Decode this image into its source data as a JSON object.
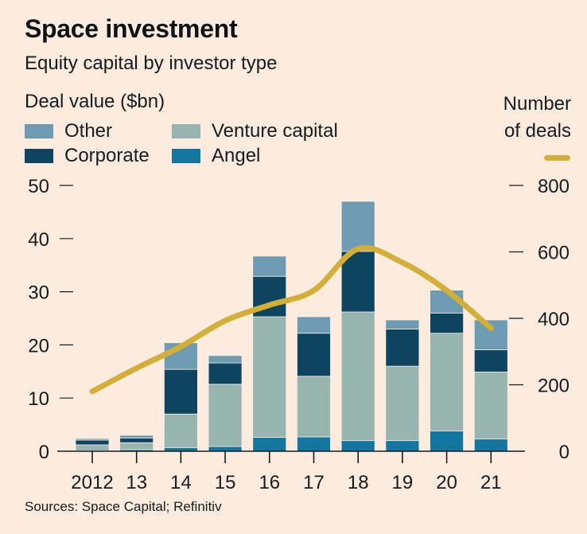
{
  "title": "Space investment",
  "subtitle": "Equity capital by investor type",
  "left_axis_label": "Deal value ($bn)",
  "right_axis_label_lines": [
    "Number",
    "of deals"
  ],
  "source": "Sources: Space Capital; Refinitiv",
  "colors": {
    "background": "#fcece0",
    "Other": "#6d9bb1",
    "Corporate": "#0d4460",
    "Venture capital": "#98b4ae",
    "Angel": "#1276a0",
    "deals_line": "#d4af37"
  },
  "legend": [
    {
      "label": "Other",
      "key": "Other"
    },
    {
      "label": "Venture capital",
      "key": "Venture capital"
    },
    {
      "label": "Corporate",
      "key": "Corporate"
    },
    {
      "label": "Angel",
      "key": "Angel"
    }
  ],
  "chart_data": {
    "type": "bar",
    "subtype": "stacked bar with line on secondary axis",
    "title": "Space investment",
    "subtitle": "Equity capital by investor type",
    "categories": [
      "2012",
      "13",
      "14",
      "15",
      "16",
      "17",
      "18",
      "19",
      "20",
      "21"
    ],
    "xlabel": "",
    "ylabel": "Deal value ($bn)",
    "ylim": [
      0,
      50
    ],
    "yticks": [
      0,
      10,
      20,
      30,
      40,
      50
    ],
    "y2label": "Number of deals",
    "y2lim": [
      0,
      800
    ],
    "y2ticks": [
      0,
      200,
      400,
      600,
      800
    ],
    "grid": false,
    "legend_position": "top-left",
    "series": [
      {
        "name": "Angel",
        "axis": "left",
        "type": "bar",
        "values": [
          0.1,
          0.3,
          0.7,
          0.9,
          2.6,
          2.7,
          2.0,
          2.0,
          3.8,
          2.3
        ]
      },
      {
        "name": "Venture capital",
        "axis": "left",
        "type": "bar",
        "values": [
          1.1,
          1.3,
          6.3,
          11.7,
          22.7,
          11.4,
          24.2,
          14.0,
          18.4,
          12.6
        ]
      },
      {
        "name": "Corporate",
        "axis": "left",
        "type": "bar",
        "values": [
          0.9,
          0.9,
          8.4,
          4.0,
          7.6,
          8.1,
          11.4,
          7.0,
          3.8,
          4.2
        ]
      },
      {
        "name": "Other",
        "axis": "left",
        "type": "bar",
        "values": [
          0.3,
          0.5,
          5.0,
          1.4,
          3.8,
          3.1,
          9.4,
          1.7,
          4.3,
          5.6
        ]
      },
      {
        "name": "Number of deals",
        "axis": "right",
        "type": "line",
        "values": [
          180,
          250,
          315,
          393,
          440,
          484,
          609,
          568,
          484,
          370
        ]
      }
    ]
  }
}
